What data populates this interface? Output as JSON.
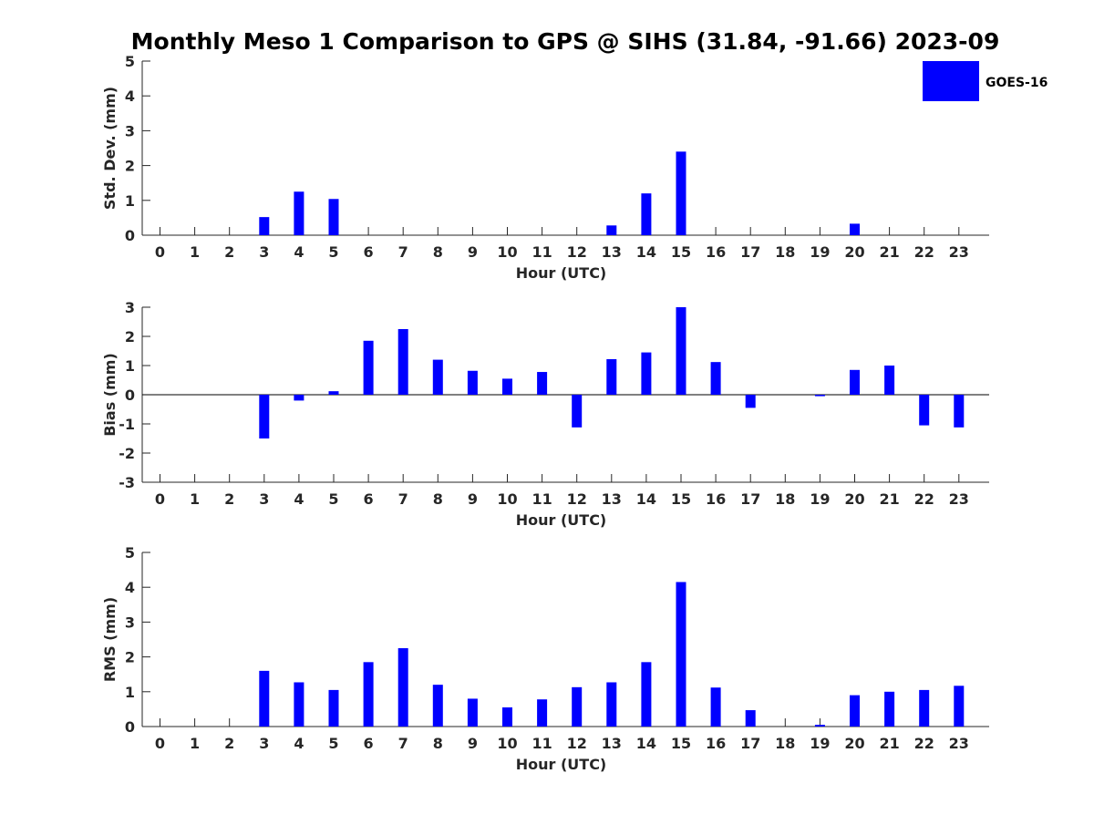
{
  "title": "Monthly Meso 1 Comparison to GPS @ SIHS (31.84, -91.66) 2023-09",
  "colors": {
    "bar": "#0000ff",
    "axis": "#262626",
    "zero_line": "#000000"
  },
  "legend": {
    "label": "GOES-16",
    "placement": "top-right"
  },
  "chart_data": [
    {
      "type": "bar",
      "name": "Std. Dev.",
      "xlabel": "Hour (UTC)",
      "ylabel": "Std. Dev. (mm)",
      "ylim": [
        0,
        5
      ],
      "yticks": [
        0,
        1,
        2,
        3,
        4,
        5
      ],
      "categories": [
        "0",
        "1",
        "2",
        "3",
        "4",
        "5",
        "6",
        "7",
        "8",
        "9",
        "10",
        "11",
        "12",
        "13",
        "14",
        "15",
        "16",
        "17",
        "18",
        "19",
        "20",
        "21",
        "22",
        "23"
      ],
      "values": [
        null,
        null,
        null,
        0.52,
        1.25,
        1.04,
        null,
        null,
        null,
        null,
        null,
        null,
        null,
        0.28,
        1.2,
        2.4,
        null,
        null,
        null,
        null,
        0.33,
        null,
        null,
        null
      ],
      "legend": true
    },
    {
      "type": "bar",
      "name": "Bias",
      "xlabel": "Hour (UTC)",
      "ylabel": "Bias (mm)",
      "ylim": [
        -3,
        3
      ],
      "yticks": [
        -3,
        -2,
        -1,
        0,
        1,
        2,
        3
      ],
      "categories": [
        "0",
        "1",
        "2",
        "3",
        "4",
        "5",
        "6",
        "7",
        "8",
        "9",
        "10",
        "11",
        "12",
        "13",
        "14",
        "15",
        "16",
        "17",
        "18",
        "19",
        "20",
        "21",
        "22",
        "23"
      ],
      "values": [
        null,
        null,
        null,
        -1.5,
        -0.2,
        0.12,
        1.85,
        2.25,
        1.2,
        0.82,
        0.55,
        0.78,
        -1.12,
        1.22,
        1.45,
        3.0,
        1.12,
        -0.45,
        null,
        -0.05,
        0.85,
        1.0,
        -1.05,
        -1.12
      ],
      "zero_line": true
    },
    {
      "type": "bar",
      "name": "RMS",
      "xlabel": "Hour (UTC)",
      "ylabel": "RMS (mm)",
      "ylim": [
        0,
        5
      ],
      "yticks": [
        0,
        1,
        2,
        3,
        4,
        5
      ],
      "categories": [
        "0",
        "1",
        "2",
        "3",
        "4",
        "5",
        "6",
        "7",
        "8",
        "9",
        "10",
        "11",
        "12",
        "13",
        "14",
        "15",
        "16",
        "17",
        "18",
        "19",
        "20",
        "21",
        "22",
        "23"
      ],
      "values": [
        null,
        null,
        null,
        1.6,
        1.27,
        1.05,
        1.85,
        2.25,
        1.2,
        0.8,
        0.55,
        0.78,
        1.13,
        1.27,
        1.85,
        4.15,
        1.12,
        0.47,
        null,
        0.05,
        0.9,
        1.0,
        1.05,
        1.17
      ]
    }
  ]
}
